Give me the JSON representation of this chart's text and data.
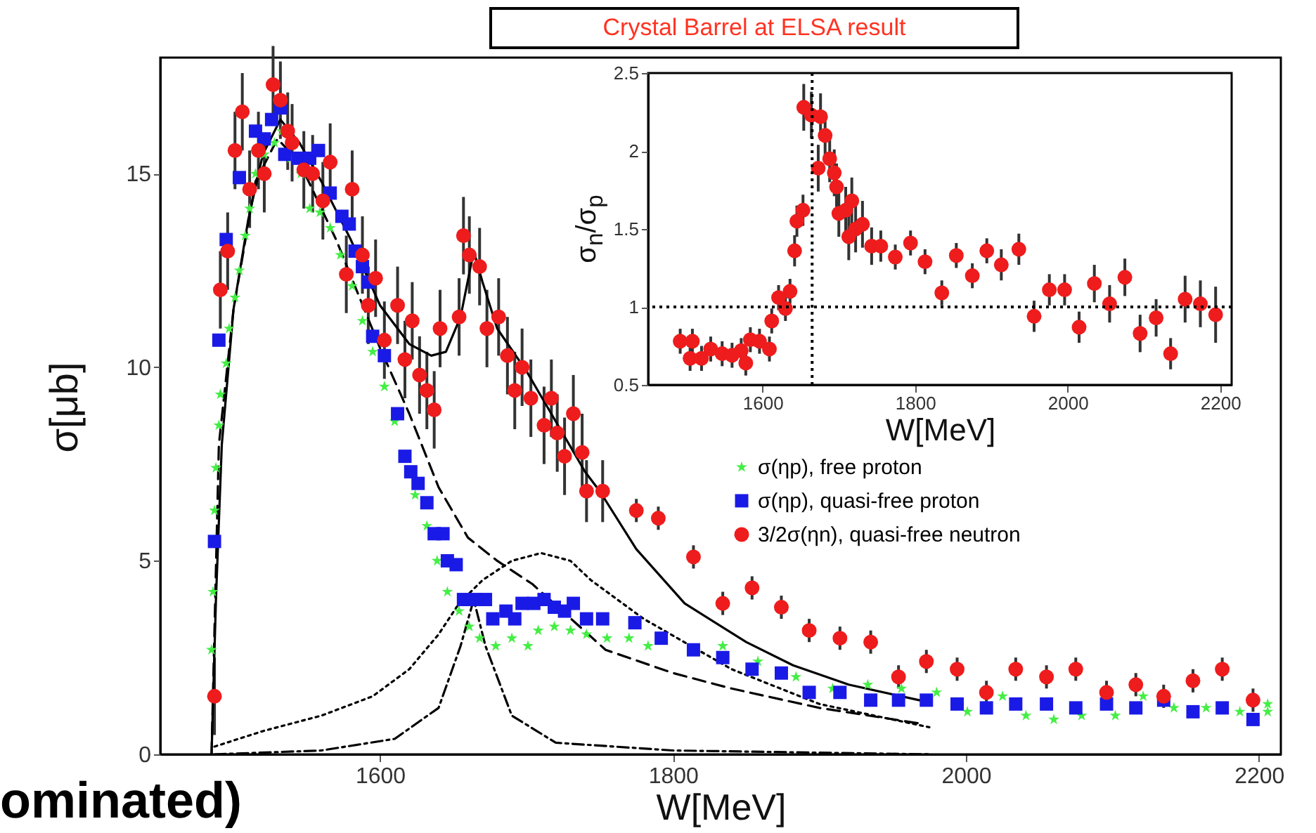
{
  "chart_data": [
    {
      "type": "scatter",
      "title": "Crystal Barrel at ELSA result",
      "xlabel": "W[MeV]",
      "ylabel": "σ[μb]",
      "annotations": [
        "ominated)"
      ],
      "xlim": [
        1450,
        2215
      ],
      "ylim": [
        0,
        18
      ],
      "xticks": [
        1600,
        1800,
        2000,
        2200
      ],
      "yticks": [
        0,
        5,
        10,
        15
      ],
      "legend": "right",
      "series": [
        {
          "name": "σ(ηp), free proton",
          "color": "#44ee44",
          "marker": "star",
          "x": [
            1485,
            1486,
            1487,
            1488,
            1490,
            1491,
            1495,
            1497,
            1501,
            1504,
            1508,
            1511,
            1515,
            1521,
            1528,
            1533,
            1539,
            1546,
            1552,
            1559,
            1566,
            1573,
            1581,
            1588,
            1595,
            1603,
            1610,
            1624,
            1632,
            1639,
            1646,
            1654,
            1661,
            1668,
            1679,
            1690,
            1701,
            1708,
            1719,
            1730,
            1741,
            1755,
            1770,
            1783,
            1834,
            1858,
            1884,
            1909,
            1933,
            1956,
            1980,
            2001,
            2025,
            2041,
            2060,
            2079,
            2102,
            2121,
            2142,
            2164,
            2187,
            2206,
            2206
          ],
          "values": [
            2.7,
            4.2,
            6.3,
            7.4,
            8.5,
            9.3,
            10.1,
            11.0,
            11.8,
            12.5,
            13.4,
            14.1,
            15.0,
            15.5,
            15.8,
            16.1,
            15.4,
            15.0,
            14.1,
            14.0,
            13.6,
            12.9,
            12.1,
            11.2,
            10.4,
            9.5,
            8.6,
            6.7,
            5.9,
            5.0,
            4.2,
            3.7,
            3.3,
            3.0,
            2.8,
            3.0,
            2.8,
            3.2,
            3.3,
            3.2,
            3.1,
            3.0,
            3.0,
            2.8,
            2.8,
            2.4,
            2.0,
            1.7,
            1.8,
            1.7,
            1.6,
            1.1,
            1.5,
            1.0,
            0.9,
            1.0,
            1.0,
            1.5,
            1.2,
            1.2,
            1.1,
            1.3,
            1.1
          ]
        },
        {
          "name": "σ(ηp), quasi-free proton",
          "color": "#1a1ae6",
          "marker": "square",
          "x": [
            1487,
            1490,
            1495,
            1504,
            1515,
            1521,
            1526,
            1532,
            1535,
            1544,
            1552,
            1558,
            1566,
            1574,
            1579,
            1583,
            1588,
            1592,
            1595,
            1603,
            1612,
            1617,
            1621,
            1626,
            1632,
            1637,
            1643,
            1646,
            1652,
            1657,
            1665,
            1672,
            1677,
            1686,
            1692,
            1697,
            1705,
            1712,
            1719,
            1726,
            1732,
            1741,
            1752,
            1774,
            1792,
            1814,
            1834,
            1854,
            1874,
            1893,
            1914,
            1935,
            1954,
            1973,
            1994,
            2014,
            2034,
            2055,
            2075,
            2096,
            2116,
            2135,
            2155,
            2175,
            2196
          ],
          "values": [
            5.5,
            10.7,
            13.3,
            14.9,
            16.1,
            15.9,
            16.4,
            16.7,
            15.5,
            15.4,
            15.4,
            15.6,
            14.5,
            13.9,
            13.7,
            13.0,
            12.6,
            12.2,
            10.8,
            10.3,
            8.8,
            7.7,
            7.3,
            7.0,
            6.5,
            5.7,
            5.7,
            5.0,
            4.9,
            4.0,
            4.0,
            4.0,
            3.5,
            3.7,
            3.5,
            3.9,
            3.9,
            4.0,
            3.8,
            3.7,
            3.9,
            3.5,
            3.5,
            3.4,
            3.0,
            2.7,
            2.5,
            2.2,
            2.1,
            1.6,
            1.6,
            1.4,
            1.4,
            1.4,
            1.3,
            1.2,
            1.3,
            1.3,
            1.2,
            1.3,
            1.2,
            1.4,
            1.1,
            1.2,
            0.9
          ]
        },
        {
          "name": "3/2σ(ηn), quasi-free neutron",
          "color": "#ee1c1c",
          "marker": "circle",
          "x": [
            1487,
            1491,
            1496,
            1501,
            1506,
            1511,
            1517,
            1521,
            1527,
            1532,
            1537,
            1540,
            1548,
            1554,
            1561,
            1566,
            1577,
            1581,
            1588,
            1592,
            1597,
            1603,
            1612,
            1617,
            1622,
            1627,
            1632,
            1637,
            1641,
            1654,
            1657,
            1661,
            1668,
            1673,
            1681,
            1687,
            1692,
            1697,
            1703,
            1712,
            1717,
            1721,
            1726,
            1732,
            1738,
            1741,
            1752,
            1775,
            1790,
            1814,
            1834,
            1854,
            1874,
            1893,
            1914,
            1935,
            1954,
            1973,
            1994,
            2014,
            2034,
            2055,
            2075,
            2096,
            2116,
            2135,
            2155,
            2175,
            2196
          ],
          "values": [
            1.5,
            12.0,
            13.0,
            15.6,
            16.6,
            14.6,
            15.6,
            15.0,
            17.3,
            16.9,
            16.1,
            15.8,
            15.1,
            15.0,
            14.3,
            15.3,
            12.4,
            14.6,
            12.9,
            11.6,
            12.3,
            10.7,
            11.6,
            10.2,
            11.2,
            9.8,
            9.4,
            8.9,
            11.0,
            11.3,
            13.4,
            12.9,
            12.6,
            11.0,
            11.3,
            10.3,
            9.4,
            10.0,
            9.2,
            8.5,
            9.2,
            8.3,
            7.7,
            8.8,
            7.8,
            6.8,
            6.8,
            6.3,
            6.1,
            5.1,
            3.9,
            4.3,
            3.8,
            3.2,
            3.0,
            2.9,
            2.0,
            2.4,
            2.2,
            1.6,
            2.2,
            2.0,
            2.2,
            1.6,
            1.8,
            1.5,
            1.9,
            2.2,
            1.4
          ],
          "errors": [
            1.0,
            1.0,
            1.0,
            1.0,
            1.0,
            1.0,
            1.0,
            1.0,
            1.0,
            1.0,
            1.0,
            1.0,
            1.0,
            1.0,
            1.0,
            1.0,
            1.0,
            1.0,
            1.0,
            1.0,
            1.0,
            1.0,
            1.0,
            1.0,
            1.0,
            1.0,
            1.0,
            1.0,
            1.0,
            1.0,
            1.0,
            1.0,
            1.0,
            1.0,
            1.0,
            1.0,
            1.0,
            1.0,
            1.0,
            1.0,
            1.0,
            1.0,
            1.0,
            1.0,
            1.0,
            0.8,
            0.8,
            0.3,
            0.3,
            0.3,
            0.3,
            0.3,
            0.3,
            0.3,
            0.3,
            0.3,
            0.3,
            0.3,
            0.3,
            0.3,
            0.3,
            0.3,
            0.3,
            0.3,
            0.3,
            0.3,
            0.3,
            0.3,
            0.3
          ]
        },
        {
          "type": "line",
          "color": "#000000",
          "line_style": "solid",
          "x": [
            1485,
            1488,
            1492,
            1500,
            1510,
            1520,
            1532,
            1545,
            1560,
            1580,
            1600,
            1620,
            1635,
            1645,
            1655,
            1664,
            1670,
            1680,
            1700,
            1720,
            1740,
            1750,
            1775,
            1808,
            1850,
            1882,
            1920,
            1968,
            1975
          ],
          "values": [
            0,
            4,
            8,
            11.5,
            13.8,
            15.5,
            16.4,
            15.8,
            14.8,
            13.3,
            11.6,
            10.6,
            10.3,
            10.4,
            11.3,
            13.0,
            12.2,
            11.0,
            9.9,
            8.6,
            7.3,
            6.8,
            5.3,
            3.9,
            2.9,
            2.3,
            1.8,
            1.4,
            1.3
          ]
        },
        {
          "type": "line",
          "color": "#000000",
          "line_style": "dashed",
          "x": [
            1485,
            1490,
            1500,
            1515,
            1530,
            1545,
            1570,
            1600,
            1620,
            1640,
            1660,
            1680,
            1704,
            1754,
            1800,
            1840,
            1900,
            1968
          ],
          "values": [
            0,
            8,
            11.5,
            14.8,
            15.9,
            15.3,
            13.3,
            10.5,
            8.8,
            6.9,
            5.6,
            5.0,
            4.4,
            2.7,
            2.1,
            1.7,
            1.2,
            0.8
          ]
        },
        {
          "type": "line",
          "color": "#000000",
          "line_style": "dotted",
          "x": [
            1487,
            1520,
            1560,
            1595,
            1620,
            1640,
            1654,
            1670,
            1690,
            1710,
            1730,
            1744,
            1780,
            1840,
            1900,
            1975
          ],
          "values": [
            0.2,
            0.6,
            1.0,
            1.5,
            2.2,
            3.1,
            3.9,
            4.5,
            5.0,
            5.2,
            5.0,
            4.5,
            3.5,
            2.2,
            1.3,
            0.7
          ]
        },
        {
          "type": "line",
          "color": "#000000",
          "line_style": "dashdot",
          "x": [
            1487,
            1560,
            1610,
            1640,
            1655,
            1664,
            1672,
            1690,
            1720,
            1800,
            1975
          ],
          "values": [
            0,
            0.1,
            0.4,
            1.2,
            2.8,
            4.0,
            2.8,
            1.0,
            0.3,
            0.1,
            0
          ]
        }
      ]
    },
    {
      "type": "scatter",
      "xlabel": "W[MeV]",
      "ylabel": "σ$_{n}$/σ$_{p}$",
      "xlim": [
        1450,
        2215
      ],
      "ylim": [
        0.5,
        2.5
      ],
      "xticks": [
        1600,
        1800,
        2000,
        2200
      ],
      "yticks": [
        0.5,
        1,
        1.5,
        2,
        2.5
      ],
      "ref_lines": [
        {
          "axis": "y",
          "value": 1,
          "line_style": "dotted"
        },
        {
          "axis": "x",
          "value": 1665,
          "line_style": "dotted"
        }
      ],
      "series": [
        {
          "color": "#ee1c1c",
          "marker": "circle",
          "x": [
            1492,
            1505,
            1508,
            1520,
            1532,
            1547,
            1560,
            1572,
            1578,
            1584,
            1596,
            1609,
            1612,
            1621,
            1630,
            1636,
            1642,
            1645,
            1653,
            1654,
            1664,
            1676,
            1673,
            1682,
            1688,
            1694,
            1697,
            1700,
            1709,
            1717,
            1713,
            1722,
            1731,
            1743,
            1755,
            1774,
            1794,
            1813,
            1835,
            1854,
            1875,
            1894,
            1913,
            1936,
            1956,
            1976,
            1996,
            2015,
            2035,
            2055,
            2075,
            2095,
            2116,
            2135,
            2154,
            2174,
            2194
          ],
          "values": [
            0.78,
            0.67,
            0.78,
            0.67,
            0.73,
            0.7,
            0.69,
            0.72,
            0.64,
            0.79,
            0.78,
            0.73,
            0.91,
            1.06,
            0.99,
            1.1,
            1.36,
            1.55,
            1.62,
            2.28,
            2.23,
            2.22,
            1.89,
            2.1,
            1.95,
            1.86,
            1.77,
            1.6,
            1.62,
            1.68,
            1.45,
            1.5,
            1.53,
            1.39,
            1.39,
            1.32,
            1.41,
            1.29,
            1.09,
            1.33,
            1.2,
            1.36,
            1.27,
            1.37,
            0.94,
            1.11,
            1.11,
            0.87,
            1.15,
            1.02,
            1.19,
            0.83,
            0.93,
            0.7,
            1.05,
            1.02,
            0.95
          ],
          "errors": [
            0.08,
            0.08,
            0.08,
            0.08,
            0.08,
            0.08,
            0.08,
            0.08,
            0.08,
            0.08,
            0.08,
            0.08,
            0.08,
            0.08,
            0.08,
            0.08,
            0.1,
            0.1,
            0.1,
            0.15,
            0.15,
            0.15,
            0.15,
            0.15,
            0.15,
            0.15,
            0.15,
            0.15,
            0.15,
            0.15,
            0.15,
            0.15,
            0.15,
            0.12,
            0.1,
            0.08,
            0.08,
            0.08,
            0.08,
            0.08,
            0.08,
            0.08,
            0.1,
            0.1,
            0.1,
            0.1,
            0.1,
            0.1,
            0.12,
            0.12,
            0.12,
            0.12,
            0.12,
            0.1,
            0.15,
            0.15,
            0.18
          ]
        }
      ]
    }
  ]
}
